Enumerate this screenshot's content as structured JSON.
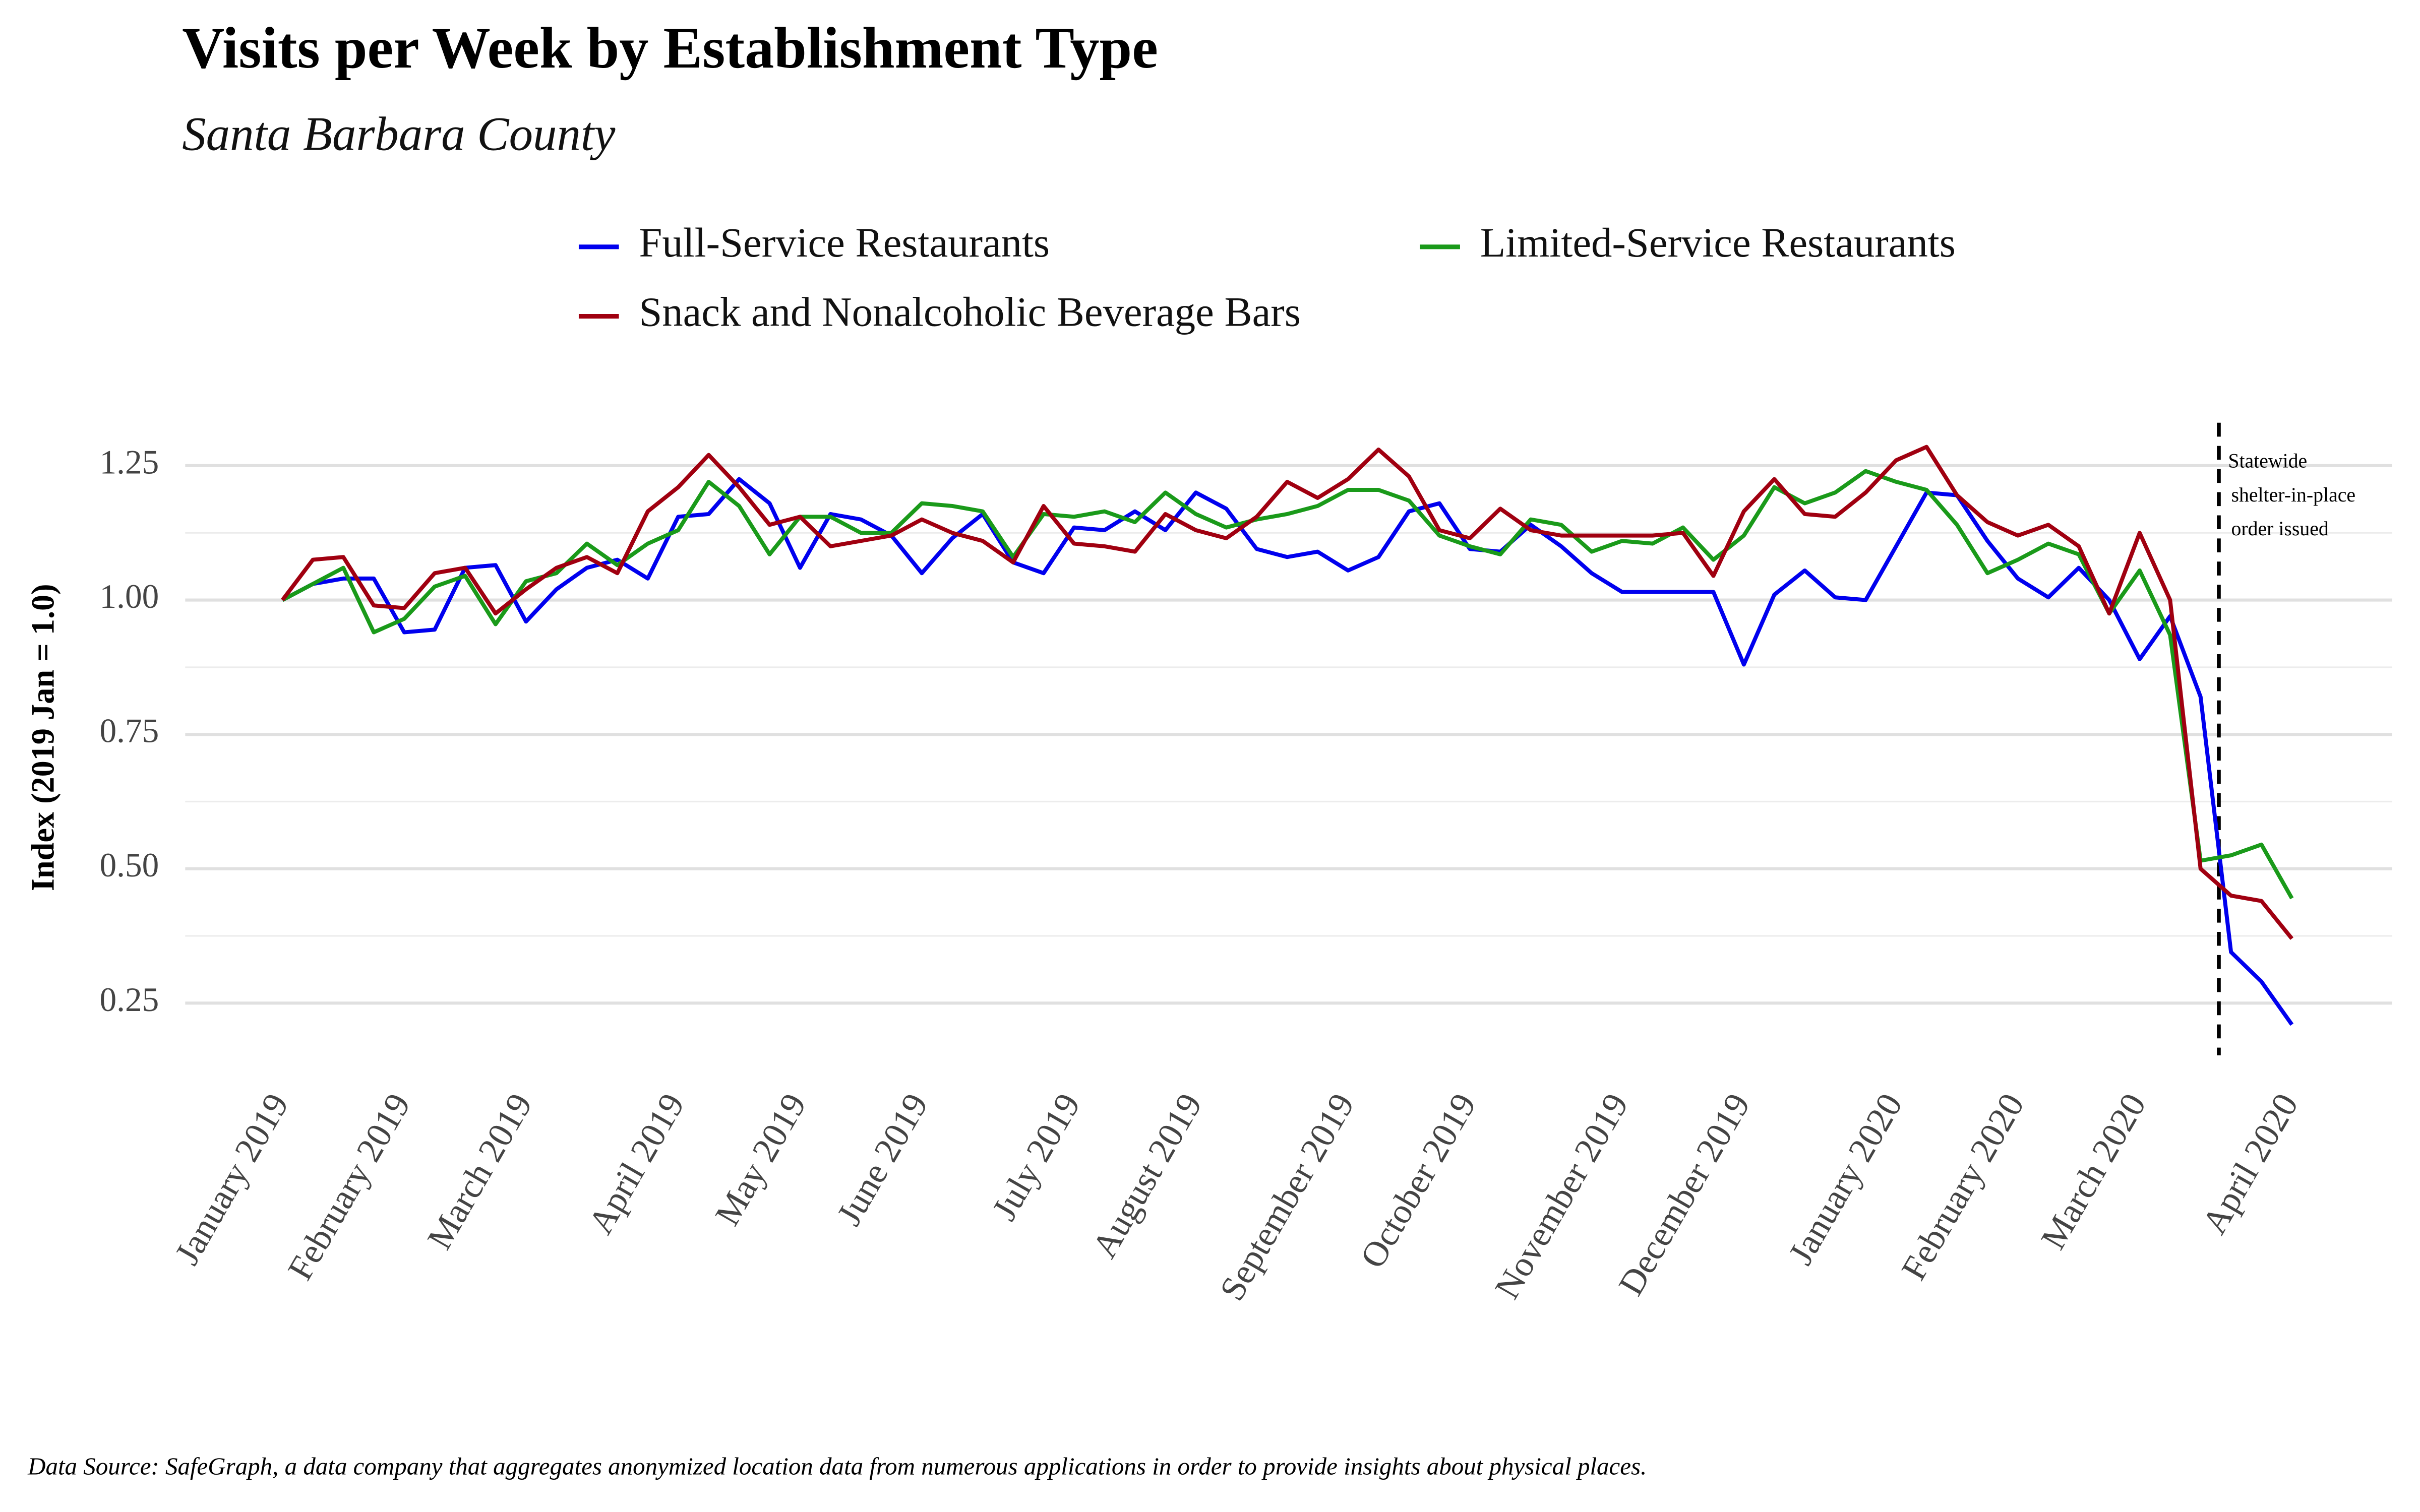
{
  "chart_data": {
    "type": "line",
    "title": "Visits per Week by Establishment Type",
    "subtitle": "Santa Barbara County",
    "ylabel": "Index (2019 Jan = 1.0)",
    "source": "Data Source: SafeGraph, a data company that aggregates anonymized location data from numerous applications in order to provide insights about physical places.",
    "annotation": [
      "Statewide",
      "shelter-in-place",
      "order issued"
    ],
    "categories": [
      "January 2019",
      null,
      null,
      null,
      "February 2019",
      null,
      null,
      null,
      "March 2019",
      null,
      null,
      null,
      null,
      "April 2019",
      null,
      null,
      null,
      "May 2019",
      null,
      null,
      null,
      "June 2019",
      null,
      null,
      null,
      null,
      "July 2019",
      null,
      null,
      null,
      "August 2019",
      null,
      null,
      null,
      null,
      "September 2019",
      null,
      null,
      null,
      "October 2019",
      null,
      null,
      null,
      null,
      "November 2019",
      null,
      null,
      null,
      "December 2019",
      null,
      null,
      null,
      null,
      "January 2020",
      null,
      null,
      null,
      "February 2020",
      null,
      null,
      null,
      "March 2020",
      null,
      null,
      null,
      null,
      "April 2020"
    ],
    "series": [
      {
        "name": "Full-Service Restaurants",
        "color": "#0000ee",
        "values": [
          1.0,
          1.03,
          1.04,
          1.04,
          0.94,
          0.945,
          1.06,
          1.065,
          0.96,
          1.02,
          1.06,
          1.075,
          1.04,
          1.155,
          1.16,
          1.225,
          1.18,
          1.06,
          1.16,
          1.15,
          1.12,
          1.05,
          1.115,
          1.16,
          1.07,
          1.05,
          1.135,
          1.13,
          1.165,
          1.13,
          1.2,
          1.17,
          1.095,
          1.08,
          1.09,
          1.055,
          1.08,
          1.165,
          1.18,
          1.095,
          1.09,
          1.14,
          1.1,
          1.05,
          1.015,
          1.015,
          1.015,
          1.015,
          0.88,
          1.01,
          1.055,
          1.005,
          1.0,
          1.1,
          1.2,
          1.195,
          1.11,
          1.04,
          1.005,
          1.06,
          1.0,
          0.89,
          0.97,
          0.82,
          0.345,
          0.29,
          0.21
        ]
      },
      {
        "name": "Limited-Service Restaurants",
        "color": "#1a9a1a",
        "values": [
          1.0,
          1.03,
          1.06,
          0.94,
          0.965,
          1.025,
          1.045,
          0.955,
          1.035,
          1.05,
          1.105,
          1.065,
          1.105,
          1.13,
          1.22,
          1.175,
          1.085,
          1.155,
          1.155,
          1.125,
          1.125,
          1.18,
          1.175,
          1.165,
          1.08,
          1.16,
          1.155,
          1.165,
          1.145,
          1.2,
          1.16,
          1.135,
          1.15,
          1.16,
          1.175,
          1.205,
          1.205,
          1.185,
          1.12,
          1.1,
          1.085,
          1.15,
          1.14,
          1.09,
          1.11,
          1.105,
          1.135,
          1.075,
          1.12,
          1.21,
          1.18,
          1.2,
          1.24,
          1.22,
          1.205,
          1.14,
          1.05,
          1.075,
          1.105,
          1.085,
          0.975,
          1.055,
          0.935,
          0.515,
          0.525,
          0.545,
          0.445
        ]
      },
      {
        "name": "Snack and Nonalcoholic Beverage Bars",
        "color": "#a00010",
        "values": [
          1.0,
          1.075,
          1.08,
          0.99,
          0.985,
          1.05,
          1.06,
          0.975,
          1.02,
          1.06,
          1.08,
          1.05,
          1.165,
          1.21,
          1.27,
          1.21,
          1.14,
          1.155,
          1.1,
          1.11,
          1.12,
          1.15,
          1.125,
          1.11,
          1.07,
          1.175,
          1.105,
          1.1,
          1.09,
          1.16,
          1.13,
          1.115,
          1.155,
          1.22,
          1.19,
          1.225,
          1.28,
          1.23,
          1.13,
          1.115,
          1.17,
          1.13,
          1.12,
          1.12,
          1.12,
          1.12,
          1.125,
          1.045,
          1.165,
          1.225,
          1.16,
          1.155,
          1.2,
          1.26,
          1.285,
          1.195,
          1.145,
          1.12,
          1.14,
          1.1,
          0.975,
          1.125,
          1.0,
          0.5,
          0.45,
          0.44,
          0.37
        ]
      }
    ],
    "ylim": [
      0.15,
      1.35
    ],
    "yticks": [
      0.25,
      {
        "value": 0.5,
        "label": "0.50"
      },
      0.75,
      {
        "value": 1,
        "label": "1.00"
      },
      1.25
    ],
    "minor_yticks": [
      0.375,
      0.625,
      0.875,
      1.125
    ],
    "grid": true,
    "legend": "top"
  }
}
